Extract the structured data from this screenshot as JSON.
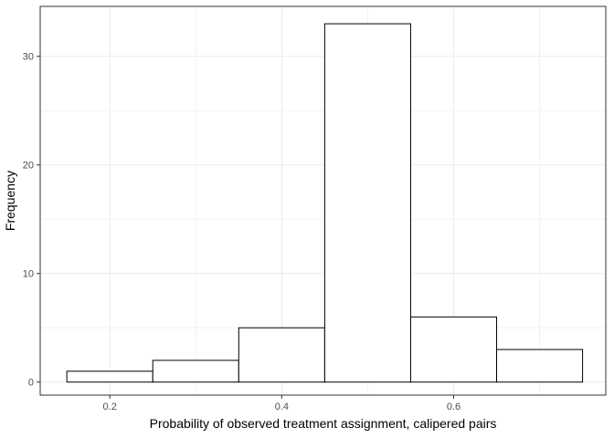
{
  "figure": {
    "background": "#ffffff"
  },
  "chart_data": {
    "type": "bar",
    "chart_kind": "histogram",
    "title": "",
    "xlabel": "Probability of observed treatment assignment, calipered pairs",
    "ylabel": "Frequency",
    "bins": [
      {
        "start": 0.15,
        "end": 0.25,
        "count": 1
      },
      {
        "start": 0.25,
        "end": 0.35,
        "count": 2
      },
      {
        "start": 0.35,
        "end": 0.45,
        "count": 5
      },
      {
        "start": 0.45,
        "end": 0.55,
        "count": 33
      },
      {
        "start": 0.55,
        "end": 0.65,
        "count": 6
      },
      {
        "start": 0.65,
        "end": 0.75,
        "count": 3
      }
    ],
    "x_ticks": {
      "values": [
        0.2,
        0.4,
        0.6
      ],
      "labels": [
        "0.2",
        "0.4",
        "0.6"
      ]
    },
    "y_ticks": {
      "values": [
        0,
        10,
        20,
        30
      ],
      "labels": [
        "0",
        "10",
        "20",
        "30"
      ]
    },
    "x_minor": [
      0.3,
      0.5,
      0.7
    ],
    "y_minor": [
      5,
      15,
      25
    ],
    "xlim": [
      0.119,
      0.777
    ],
    "ylim": [
      -1.2,
      34.6
    ],
    "grid": true,
    "legend": "none",
    "colors": {
      "bar_fill": "#ffffff",
      "bar_stroke": "#000000",
      "panel_border": "#333333",
      "grid_major": "#ebebeb",
      "grid_minor": "#f2f2f2",
      "tick_mark": "#333333",
      "tick_label": "#4d4d4d",
      "axis_title": "#000000",
      "background": "#ffffff"
    }
  }
}
